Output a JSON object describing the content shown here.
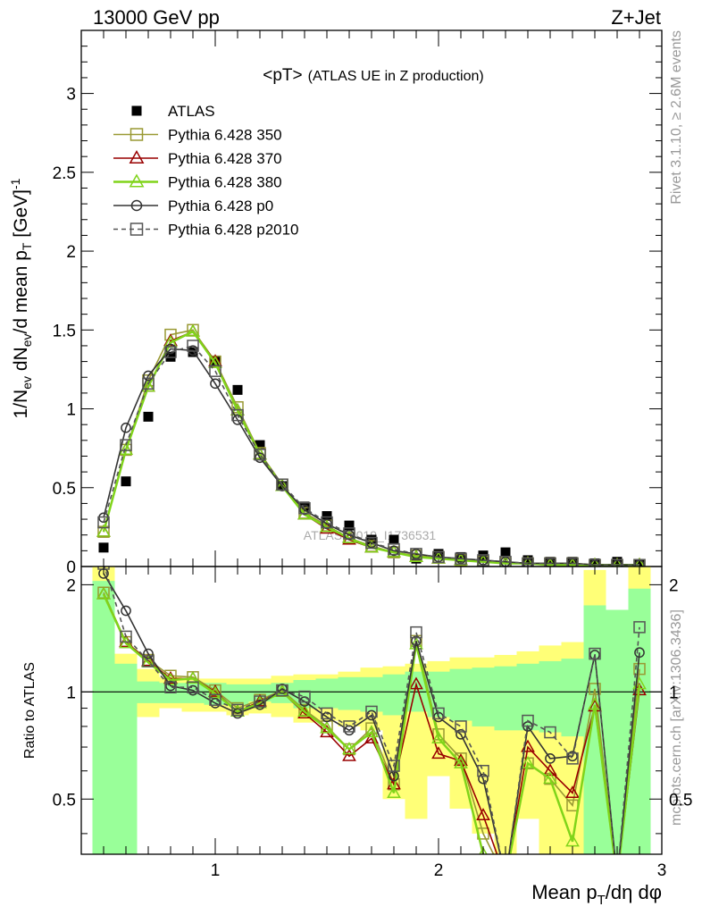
{
  "header": {
    "left": "13000 GeV pp",
    "right": "Z+Jet"
  },
  "side_labels": {
    "rivet": "Rivet 3.1.10, ≥ 2.6M events",
    "mcplots": "mcplots.cern.ch [arXiv:1306.3436]"
  },
  "watermark": "ATLAS_2019_I1736531",
  "chart_data": [
    {
      "panel": "main",
      "type": "line",
      "title": "<pT> (ATLAS UE in Z production)",
      "title_main": "<pT>",
      "title_sub": "(ATLAS UE in Z production)",
      "ylabel": "1/N_ev dN_ev/d mean p_T [GeV]^-1",
      "ylabel_parts": {
        "a": "1/N",
        "b": "ev",
        "c": " dN",
        "d": "ev",
        "e": "/d mean p",
        "f": "T",
        "g": " [GeV]",
        "h": "-1"
      },
      "xlim": [
        0.4,
        3.0
      ],
      "ylim": [
        0,
        3.4
      ],
      "yticks": [
        "0",
        "0.5",
        "1",
        "1.5",
        "2",
        "2.5",
        "3"
      ],
      "legend_placement": "top-left",
      "x": [
        0.5,
        0.6,
        0.7,
        0.8,
        0.9,
        1.0,
        1.1,
        1.2,
        1.3,
        1.4,
        1.5,
        1.6,
        1.7,
        1.8,
        1.9,
        2.0,
        2.1,
        2.2,
        2.3,
        2.4,
        2.5,
        2.6,
        2.7,
        2.8,
        2.9
      ],
      "series": [
        {
          "name": "ATLAS",
          "color": "#000000",
          "marker": "filled-square",
          "values": [
            0.12,
            0.54,
            0.95,
            1.33,
            1.36,
            1.3,
            1.12,
            0.77,
            0.51,
            0.38,
            0.32,
            0.26,
            0.17,
            0.17,
            0.05,
            0.08,
            0.06,
            0.07,
            0.09,
            0.04,
            0.03,
            0.03,
            0.02,
            0.03,
            0.01
          ]
        },
        {
          "name": "Pythia 6.428 350",
          "color": "#999933",
          "marker": "open-square",
          "values": [
            0.22,
            0.74,
            1.18,
            1.47,
            1.5,
            1.3,
            1.01,
            0.72,
            0.52,
            0.34,
            0.26,
            0.18,
            0.13,
            0.09,
            0.07,
            0.06,
            0.04,
            0.03,
            0.02,
            0.02,
            0.02,
            0.02,
            0.01,
            0.01,
            0.01
          ]
        },
        {
          "name": "Pythia 6.428 370",
          "color": "#990000",
          "marker": "open-triangle",
          "values": [
            0.22,
            0.74,
            1.14,
            1.43,
            1.49,
            1.3,
            0.99,
            0.71,
            0.51,
            0.33,
            0.24,
            0.17,
            0.12,
            0.09,
            0.06,
            0.05,
            0.04,
            0.03,
            0.02,
            0.02,
            0.01,
            0.01,
            0.01,
            0.01,
            0.01
          ]
        },
        {
          "name": "Pythia 6.428 380",
          "color": "#80d41a",
          "marker": "open-triangle",
          "values": [
            0.22,
            0.74,
            1.14,
            1.42,
            1.49,
            1.29,
            0.99,
            0.71,
            0.51,
            0.33,
            0.25,
            0.18,
            0.12,
            0.09,
            0.06,
            0.05,
            0.04,
            0.03,
            0.02,
            0.02,
            0.01,
            0.01,
            0.01,
            0.01,
            0.01
          ]
        },
        {
          "name": "Pythia 6.428 p0",
          "color": "#333333",
          "marker": "open-circle",
          "values": [
            0.31,
            0.88,
            1.21,
            1.38,
            1.37,
            1.16,
            0.93,
            0.69,
            0.51,
            0.36,
            0.27,
            0.2,
            0.15,
            0.1,
            0.08,
            0.06,
            0.05,
            0.04,
            0.03,
            0.02,
            0.02,
            0.02,
            0.01,
            0.01,
            0.01
          ]
        },
        {
          "name": "Pythia 6.428 p2010",
          "color": "#555555",
          "marker": "open-square",
          "dashed": true,
          "values": [
            0.28,
            0.77,
            1.16,
            1.36,
            1.4,
            1.24,
            0.96,
            0.71,
            0.52,
            0.37,
            0.28,
            0.21,
            0.15,
            0.11,
            0.08,
            0.06,
            0.05,
            0.04,
            0.03,
            0.02,
            0.02,
            0.02,
            0.01,
            0.01,
            0.01
          ]
        }
      ]
    },
    {
      "panel": "ratio",
      "type": "line",
      "ylabel": "Ratio to ATLAS",
      "xlabel": "Mean p_T/dη dφ",
      "xlabel_parts": {
        "a": "Mean p",
        "b": "T",
        "c": "/dη dφ"
      },
      "xlim": [
        0.4,
        3.0
      ],
      "ylim": [
        0.35,
        2.25
      ],
      "xticks": [
        "1",
        "2",
        "3"
      ],
      "yticks": [
        "0.5",
        "1",
        "2"
      ],
      "band_edges": [
        0.45,
        0.55,
        0.65,
        0.75,
        0.85,
        0.95,
        1.05,
        1.15,
        1.25,
        1.35,
        1.45,
        1.55,
        1.65,
        1.75,
        1.85,
        1.95,
        2.05,
        2.15,
        2.25,
        2.35,
        2.45,
        2.55,
        2.65,
        2.75,
        2.85,
        2.95
      ],
      "bands": {
        "total": {
          "color": "#ffff77",
          "lo": [
            0.35,
            0.8,
            0.85,
            0.9,
            0.88,
            0.88,
            0.86,
            0.87,
            0.85,
            0.82,
            0.83,
            0.8,
            0.78,
            0.5,
            0.44,
            0.58,
            0.47,
            0.4,
            0.35,
            0.44,
            0.35,
            0.35,
            0.35,
            0.35,
            0.35
          ],
          "hi": [
            2.25,
            1.28,
            1.16,
            1.1,
            1.09,
            1.09,
            1.09,
            1.09,
            1.11,
            1.12,
            1.12,
            1.14,
            1.17,
            1.18,
            1.2,
            1.22,
            1.25,
            1.25,
            1.27,
            1.3,
            1.35,
            1.38,
            2.2,
            1.28,
            2.25
          ]
        },
        "stat": {
          "color": "#99ff99",
          "lo": [
            0.35,
            0.35,
            0.93,
            0.93,
            0.93,
            0.92,
            0.92,
            0.94,
            0.93,
            0.9,
            0.9,
            0.89,
            0.88,
            0.86,
            0.88,
            0.85,
            0.83,
            0.8,
            0.78,
            0.78,
            0.77,
            0.75,
            0.35,
            0.35,
            0.35
          ],
          "hi": [
            2.05,
            1.2,
            1.07,
            1.06,
            1.06,
            1.06,
            1.05,
            1.05,
            1.06,
            1.08,
            1.09,
            1.1,
            1.1,
            1.12,
            1.14,
            1.14,
            1.16,
            1.17,
            1.18,
            1.2,
            1.22,
            1.24,
            1.75,
            1.7,
            1.95
          ]
        }
      },
      "x": [
        0.5,
        0.6,
        0.7,
        0.8,
        0.9,
        1.0,
        1.1,
        1.2,
        1.3,
        1.4,
        1.5,
        1.6,
        1.7,
        1.8,
        1.9,
        2.0,
        2.1,
        2.2,
        2.3,
        2.4,
        2.5,
        2.6,
        2.7,
        2.8,
        2.9
      ],
      "series": [
        {
          "name": "Pythia 6.428 350",
          "color": "#999933",
          "marker": "open-square",
          "values": [
            1.9,
            1.38,
            1.23,
            1.11,
            1.1,
            1.01,
            0.9,
            0.95,
            1.01,
            0.89,
            0.8,
            0.69,
            0.79,
            0.55,
            1.39,
            0.76,
            0.65,
            0.4,
            0.3,
            0.63,
            0.57,
            0.48,
            1.02,
            0.3,
            1.16
          ]
        },
        {
          "name": "Pythia 6.428 370",
          "color": "#990000",
          "marker": "open-triangle",
          "values": [
            1.88,
            1.38,
            1.22,
            1.09,
            1.09,
            1.0,
            0.88,
            0.94,
            1.0,
            0.87,
            0.77,
            0.66,
            0.74,
            0.55,
            1.05,
            0.67,
            0.64,
            0.45,
            0.3,
            0.7,
            0.6,
            0.52,
            0.91,
            0.3,
            1.01
          ]
        },
        {
          "name": "Pythia 6.428 380",
          "color": "#80d41a",
          "marker": "open-triangle",
          "values": [
            1.88,
            1.37,
            1.21,
            1.08,
            1.09,
            0.99,
            0.88,
            0.93,
            1.0,
            0.88,
            0.79,
            0.69,
            0.77,
            0.52,
            1.36,
            0.74,
            0.63,
            0.35,
            0.3,
            0.63,
            0.57,
            0.38,
            0.92,
            0.3,
            1.05
          ]
        },
        {
          "name": "Pythia 6.428 p0",
          "color": "#333333",
          "marker": "open-circle",
          "values": [
            2.15,
            1.69,
            1.28,
            1.04,
            1.01,
            0.93,
            0.87,
            0.92,
            1.02,
            0.94,
            0.85,
            0.78,
            0.86,
            0.58,
            1.39,
            0.85,
            0.76,
            0.57,
            0.3,
            0.8,
            0.65,
            0.66,
            1.27,
            0.3,
            1.29
          ]
        },
        {
          "name": "Pythia 6.428 p2010",
          "color": "#555555",
          "marker": "open-square",
          "dashed": true,
          "values": [
            2.29,
            1.43,
            1.22,
            1.03,
            1.03,
            0.95,
            0.89,
            0.94,
            1.01,
            0.97,
            0.87,
            0.8,
            0.88,
            0.62,
            1.47,
            0.87,
            0.8,
            0.6,
            0.3,
            0.83,
            0.77,
            0.65,
            1.28,
            0.3,
            1.52
          ]
        }
      ]
    }
  ]
}
